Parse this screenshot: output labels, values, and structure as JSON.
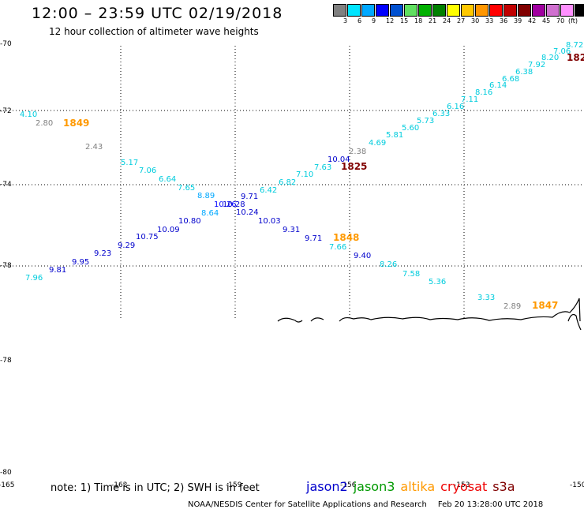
{
  "header": {
    "title": "12:00 – 23:59 UTC 02/19/2018",
    "subtitle": "12 hour collection of altimeter wave heights"
  },
  "legend": {
    "colors": [
      "#808080",
      "#00e5ff",
      "#00a8ff",
      "#0000ff",
      "#0050d0",
      "#60e060",
      "#00b000",
      "#008000",
      "#ffff00",
      "#ffc800",
      "#ff9600",
      "#ff0000",
      "#c00000",
      "#800000",
      "#a000a0",
      "#d070d0",
      "#ff90ff",
      "#000000"
    ],
    "labels": [
      "3",
      "6",
      "9",
      "12",
      "15",
      "18",
      "21",
      "24",
      "27",
      "30",
      "33",
      "36",
      "39",
      "42",
      "45",
      "70",
      "(ft)"
    ]
  },
  "axes": {
    "lat_labels": [
      "-70",
      "-72",
      "-74",
      "-76",
      "-78",
      "-78",
      "-80"
    ],
    "lon_labels": [
      "-165",
      "-162",
      "-159",
      "-156",
      "-153",
      "-150"
    ]
  },
  "observations": [
    {
      "t": "4.10",
      "c": "#00ccdd"
    },
    {
      "t": "2.80",
      "c": "#808080"
    },
    {
      "t": "1849",
      "c": "#ff9900",
      "time": true
    },
    {
      "t": "2.43",
      "c": "#808080"
    },
    {
      "t": "5.17",
      "c": "#00ccdd"
    },
    {
      "t": "7.06",
      "c": "#00ccdd"
    },
    {
      "t": "6.64",
      "c": "#00ccdd"
    },
    {
      "t": "7.65",
      "c": "#00ccdd"
    },
    {
      "t": "8.89",
      "c": "#00a8ff"
    },
    {
      "t": "10.26",
      "c": "#0000ff"
    },
    {
      "t": "10.28",
      "c": "#0000cc"
    },
    {
      "t": "8.64",
      "c": "#00a8ff"
    },
    {
      "t": "10.80",
      "c": "#0000cc"
    },
    {
      "t": "10.09",
      "c": "#0000cc"
    },
    {
      "t": "10.75",
      "c": "#0000cc"
    },
    {
      "t": "9.29",
      "c": "#0000cc"
    },
    {
      "t": "9.23",
      "c": "#0000cc"
    },
    {
      "t": "9.95",
      "c": "#0000cc"
    },
    {
      "t": "9.81",
      "c": "#0000cc"
    },
    {
      "t": "7.96",
      "c": "#00ccdd"
    },
    {
      "t": "9.71",
      "c": "#0000cc"
    },
    {
      "t": "6.42",
      "c": "#00ccdd"
    },
    {
      "t": "6.82",
      "c": "#00ccdd"
    },
    {
      "t": "7.10",
      "c": "#00ccdd"
    },
    {
      "t": "7.63",
      "c": "#00ccdd"
    },
    {
      "t": "10.04",
      "c": "#0000cc"
    },
    {
      "t": "2.38",
      "c": "#808080"
    },
    {
      "t": "1825",
      "c": "#800000",
      "time": true
    },
    {
      "t": "4.69",
      "c": "#00ccdd"
    },
    {
      "t": "5.81",
      "c": "#00ccdd"
    },
    {
      "t": "5.60",
      "c": "#00ccdd"
    },
    {
      "t": "5.73",
      "c": "#00ccdd"
    },
    {
      "t": "6.33",
      "c": "#00ccdd"
    },
    {
      "t": "6.16",
      "c": "#00ccdd"
    },
    {
      "t": "7.11",
      "c": "#00ccdd"
    },
    {
      "t": "8.16",
      "c": "#00ccdd"
    },
    {
      "t": "6.14",
      "c": "#00ccdd"
    },
    {
      "t": "6.68",
      "c": "#00ccdd"
    },
    {
      "t": "6.38",
      "c": "#00ccdd"
    },
    {
      "t": "7.92",
      "c": "#00ccdd"
    },
    {
      "t": "8.20",
      "c": "#00ccdd"
    },
    {
      "t": "7.06",
      "c": "#00ccdd"
    },
    {
      "t": "8.72",
      "c": "#00ccdd"
    },
    {
      "t": "182",
      "c": "#800000",
      "time": true
    },
    {
      "t": "10.24",
      "c": "#0000cc"
    },
    {
      "t": "10.03",
      "c": "#0000cc"
    },
    {
      "t": "9.31",
      "c": "#0000cc"
    },
    {
      "t": "9.71",
      "c": "#0000cc"
    },
    {
      "t": "1848",
      "c": "#ff9900",
      "time": true
    },
    {
      "t": "7.66",
      "c": "#00ccdd"
    },
    {
      "t": "9.40",
      "c": "#0000cc"
    },
    {
      "t": "8.26",
      "c": "#00ccdd"
    },
    {
      "t": "7.58",
      "c": "#00ccdd"
    },
    {
      "t": "5.36",
      "c": "#00ccdd"
    },
    {
      "t": "3.33",
      "c": "#00ccdd"
    },
    {
      "t": "2.89",
      "c": "#808080"
    },
    {
      "t": "1847",
      "c": "#ff9900",
      "time": true
    }
  ],
  "footer": {
    "note": "note:  1) Time is in UTC;  2) SWH is in feet",
    "satellites": [
      {
        "name": "jason2",
        "color": "#0000cc"
      },
      {
        "name": "jason3",
        "color": "#009900"
      },
      {
        "name": "altika",
        "color": "#ff9900"
      },
      {
        "name": "cryosat",
        "color": "#ee0000"
      },
      {
        "name": "s3a",
        "color": "#800000"
      }
    ],
    "credit": "NOAA/NESDIS Center for Satellite Applications and Research",
    "timestamp": "Feb 20 13:28:00 UTC 2018"
  }
}
